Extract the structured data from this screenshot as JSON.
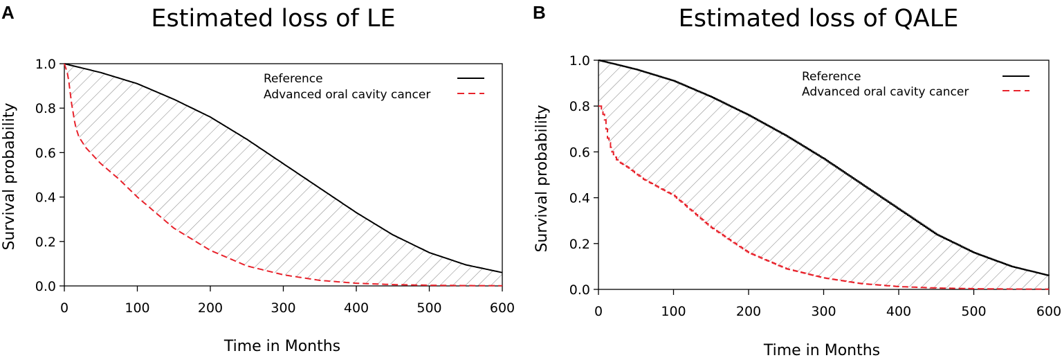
{
  "chart_data": [
    {
      "panel": "A",
      "type": "line",
      "title": "Estimated loss of LE",
      "xlabel": "Time in Months",
      "ylabel": "Survival probability",
      "xlim": [
        0,
        600
      ],
      "ylim": [
        0,
        1
      ],
      "xticks": [
        0,
        100,
        200,
        300,
        400,
        500,
        600
      ],
      "yticks": [
        "0.0",
        "0.2",
        "0.4",
        "0.6",
        "0.8",
        "1.0"
      ],
      "legend_position": "top-right",
      "shaded_region": "hatched area between Reference and Advanced oral cavity cancer curves",
      "series": [
        {
          "name": "Reference",
          "color": "#000000",
          "style": "solid",
          "x": [
            0,
            50,
            100,
            150,
            200,
            250,
            300,
            350,
            400,
            450,
            500,
            550,
            600
          ],
          "y": [
            1.0,
            0.96,
            0.91,
            0.84,
            0.76,
            0.66,
            0.55,
            0.44,
            0.33,
            0.23,
            0.15,
            0.095,
            0.06
          ]
        },
        {
          "name": "Advanced oral cavity cancer",
          "color": "#e8222b",
          "style": "dashed",
          "x": [
            0,
            5,
            10,
            15,
            20,
            30,
            50,
            75,
            100,
            150,
            200,
            250,
            300,
            350,
            400,
            450,
            500,
            550,
            600
          ],
          "y": [
            1.0,
            0.95,
            0.82,
            0.72,
            0.67,
            0.62,
            0.55,
            0.48,
            0.4,
            0.26,
            0.16,
            0.09,
            0.05,
            0.025,
            0.012,
            0.006,
            0.003,
            0.0015,
            0.001
          ]
        }
      ]
    },
    {
      "panel": "B",
      "type": "line",
      "title": "Estimated loss of QALE",
      "xlabel": "Time in Months",
      "ylabel": "Survival probability",
      "xlim": [
        0,
        600
      ],
      "ylim": [
        0,
        1
      ],
      "xticks": [
        0,
        100,
        200,
        300,
        400,
        500,
        600
      ],
      "yticks": [
        "0.0",
        "0.2",
        "0.4",
        "0.6",
        "0.8",
        "1.0"
      ],
      "legend_position": "top-right",
      "shaded_region": "hatched area between Reference and Advanced oral cavity cancer curves",
      "series": [
        {
          "name": "Reference",
          "color": "#000000",
          "style": "solid",
          "x": [
            0,
            50,
            100,
            150,
            200,
            250,
            300,
            350,
            400,
            450,
            500,
            550,
            600
          ],
          "y": [
            1.0,
            0.96,
            0.91,
            0.84,
            0.76,
            0.67,
            0.57,
            0.46,
            0.35,
            0.24,
            0.16,
            0.1,
            0.06
          ]
        },
        {
          "name": "Advanced oral cavity cancer",
          "color": "#e8222b",
          "style": "dashed",
          "x": [
            0,
            3,
            8,
            12,
            18,
            25,
            40,
            60,
            100,
            150,
            200,
            250,
            300,
            350,
            400,
            450,
            500,
            550,
            600
          ],
          "y": [
            0.8,
            0.8,
            0.74,
            0.66,
            0.6,
            0.56,
            0.53,
            0.48,
            0.41,
            0.27,
            0.16,
            0.09,
            0.05,
            0.025,
            0.012,
            0.006,
            0.003,
            0.0015,
            0.001
          ]
        }
      ]
    }
  ]
}
